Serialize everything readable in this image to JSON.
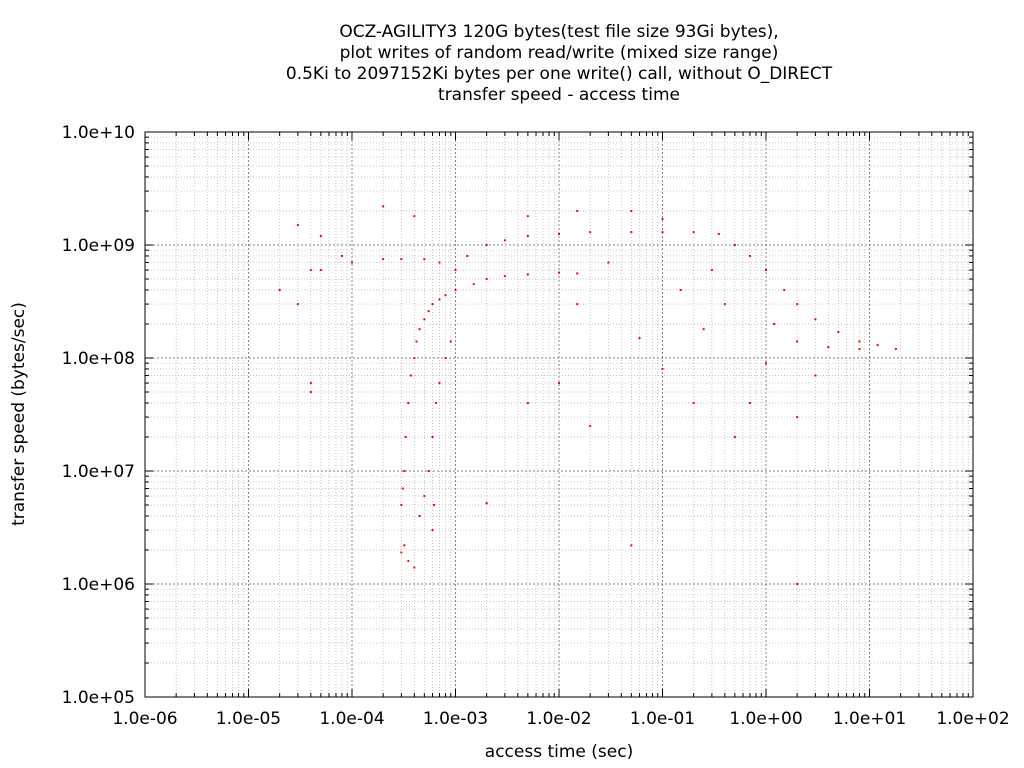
{
  "chart_data": {
    "type": "scatter",
    "title_lines": [
      "OCZ-AGILITY3 120G bytes(test file size 93Gi bytes),",
      "plot writes of random read/write (mixed size range)",
      "0.5Ki to 2097152Ki bytes per one write() call, without O_DIRECT",
      "transfer speed - access time"
    ],
    "xlabel": "access time (sec)",
    "ylabel": "transfer speed (bytes/sec)",
    "x_scale": "log",
    "y_scale": "log",
    "xlim": [
      1e-06,
      100
    ],
    "ylim": [
      100000.0,
      10000000000.0
    ],
    "x_ticks": [
      "1.0e-06",
      "1.0e-05",
      "1.0e-04",
      "1.0e-03",
      "1.0e-02",
      "1.0e-01",
      "1.0e+00",
      "1.0e+01",
      "1.0e+02"
    ],
    "y_ticks": [
      "1.0e+05",
      "1.0e+06",
      "1.0e+07",
      "1.0e+08",
      "1.0e+09",
      "1.0e+10"
    ],
    "grid": true,
    "legend": "none",
    "point_color": "#ff0000",
    "series": [
      {
        "points": [
          [
            0.0003,
            1900000.0
          ],
          [
            0.00035,
            1600000.0
          ],
          [
            0.0004,
            1400000.0
          ],
          [
            0.00032,
            2200000.0
          ],
          [
            0.0003,
            5000000.0
          ],
          [
            0.00031,
            7000000.0
          ],
          [
            0.00032,
            10000000.0
          ],
          [
            0.00033,
            20000000.0
          ],
          [
            0.00035,
            40000000.0
          ],
          [
            0.00037,
            70000000.0
          ],
          [
            0.0004,
            100000000.0
          ],
          [
            0.00042,
            140000000.0
          ],
          [
            0.00045,
            180000000.0
          ],
          [
            0.0005,
            220000000.0
          ],
          [
            0.00055,
            260000000.0
          ],
          [
            0.0006,
            300000000.0
          ],
          [
            0.0007,
            330000000.0
          ],
          [
            0.0008,
            360000000.0
          ],
          [
            0.001,
            400000000.0
          ],
          [
            0.0015,
            450000000.0
          ],
          [
            0.002,
            500000000.0
          ],
          [
            0.003,
            530000000.0
          ],
          [
            0.005,
            550000000.0
          ],
          [
            0.01,
            570000000.0
          ],
          [
            0.015,
            560000000.0
          ],
          [
            0.00045,
            4000000.0
          ],
          [
            0.0005,
            6000000.0
          ],
          [
            0.00055,
            10000000.0
          ],
          [
            0.0006,
            20000000.0
          ],
          [
            0.00065,
            40000000.0
          ],
          [
            0.0007,
            60000000.0
          ],
          [
            0.0008,
            100000000.0
          ],
          [
            0.0009,
            140000000.0
          ],
          [
            0.0006,
            3000000.0
          ],
          [
            0.00062,
            5000000.0
          ],
          [
            0.001,
            600000000.0
          ],
          [
            0.0013,
            800000000.0
          ],
          [
            0.002,
            1000000000.0
          ],
          [
            0.003,
            1100000000.0
          ],
          [
            0.005,
            1200000000.0
          ],
          [
            0.01,
            1250000000.0
          ],
          [
            0.02,
            1300000000.0
          ],
          [
            0.05,
            1300000000.0
          ],
          [
            0.1,
            1300000000.0
          ],
          [
            0.2,
            1300000000.0
          ],
          [
            0.35,
            1250000000.0
          ],
          [
            0.5,
            1000000000.0
          ],
          [
            0.7,
            800000000.0
          ],
          [
            1.0,
            600000000.0
          ],
          [
            1.5,
            400000000.0
          ],
          [
            2.0,
            300000000.0
          ],
          [
            3.0,
            220000000.0
          ],
          [
            5.0,
            170000000.0
          ],
          [
            8.0,
            140000000.0
          ],
          [
            12.0,
            130000000.0
          ],
          [
            18.0,
            120000000.0
          ],
          [
            1.2,
            200000000.0
          ],
          [
            2.0,
            140000000.0
          ],
          [
            4.0,
            125000000.0
          ],
          [
            8.0,
            120000000.0
          ],
          [
            0.0001,
            700000000.0
          ],
          [
            0.0002,
            750000000.0
          ],
          [
            0.0003,
            750000000.0
          ],
          [
            0.0005,
            750000000.0
          ],
          [
            0.0007,
            700000000.0
          ],
          [
            4e-05,
            600000000.0
          ],
          [
            5e-05,
            600000000.0
          ],
          [
            8e-05,
            800000000.0
          ],
          [
            2e-05,
            400000000.0
          ],
          [
            3e-05,
            300000000.0
          ],
          [
            3e-05,
            1500000000.0
          ],
          [
            5e-05,
            1200000000.0
          ],
          [
            0.0002,
            2200000000.0
          ],
          [
            0.0004,
            1800000000.0
          ],
          [
            4e-05,
            60000000.0
          ],
          [
            4e-05,
            50000000.0
          ],
          [
            0.005,
            1800000000.0
          ],
          [
            0.015,
            2000000000.0
          ],
          [
            0.05,
            2000000000.0
          ],
          [
            0.1,
            1700000000.0
          ],
          [
            0.15,
            400000000.0
          ],
          [
            0.1,
            80000000.0
          ],
          [
            0.2,
            40000000.0
          ],
          [
            0.5,
            20000000.0
          ],
          [
            0.01,
            60000000.0
          ],
          [
            0.02,
            25000000.0
          ],
          [
            0.05,
            2200000.0
          ],
          [
            0.005,
            40000000.0
          ],
          [
            0.002,
            5200000.0
          ],
          [
            2.0,
            30000000.0
          ],
          [
            3.0,
            70000000.0
          ],
          [
            2.0,
            1000000.0
          ],
          [
            0.015,
            300000000.0
          ],
          [
            0.03,
            700000000.0
          ],
          [
            0.3,
            600000000.0
          ],
          [
            0.4,
            300000000.0
          ],
          [
            0.7,
            40000000.0
          ],
          [
            0.06,
            150000000.0
          ],
          [
            0.25,
            180000000.0
          ],
          [
            1.0,
            90000000.0
          ]
        ]
      }
    ]
  }
}
